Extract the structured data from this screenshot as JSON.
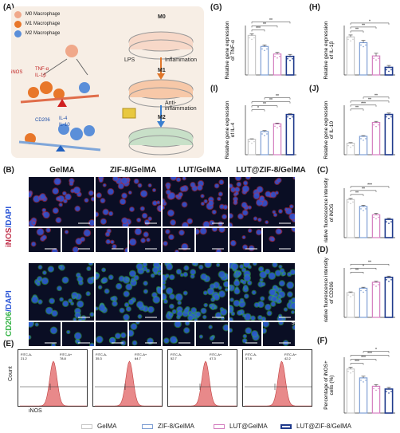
{
  "panels": {
    "A": "(A)",
    "B": "(B)",
    "C": "(C)",
    "D": "(D)",
    "E": "(E)",
    "F": "(F)",
    "G": "(G)",
    "H": "(H)",
    "I": "(I)",
    "J": "(J)"
  },
  "schematic": {
    "legend": [
      "M0 Macrophage",
      "M1 Macrophage",
      "M2 Macrophage"
    ],
    "m1_markers": {
      "inos": "iNOS",
      "tnf": "TNF-α",
      "il1b": "IL-1β"
    },
    "m2_markers": {
      "cd206": "CD206",
      "il4": "IL-4",
      "il10": "IL-10"
    },
    "states": {
      "m0": "M0",
      "m1": "M1",
      "m2": "M2"
    },
    "lps": "LPS",
    "inflammation": "Inflammation",
    "anti_inflammation": "Anti-\ninflammation"
  },
  "groups": [
    "GelMA",
    "ZIF-8/GelMA",
    "LUT/GelMA",
    "LUT@ZIF-8/GelMA"
  ],
  "stain_labels": {
    "inos": [
      "iNOS",
      "/DAPI"
    ],
    "cd206": [
      "CD206",
      "/DAPI"
    ]
  },
  "scale_bar": "50μm",
  "flow": {
    "ylabel": "Count",
    "xlabel": "iNOS",
    "left_gate": "FITC-A-",
    "right_gate": "FITC-A+",
    "left_values": [
      "21.2",
      "35.3",
      "52.7",
      "57.8"
    ],
    "right_values": [
      "78.8",
      "64.7",
      "47.3",
      "42.2"
    ]
  },
  "colors": {
    "gelma": "#c8c8c8",
    "zif8": "#7f9fd4",
    "lut": "#d47fc0",
    "lutzif": "#1f3a8c",
    "flow_fill": "#e8898a",
    "inos_stain": "#c0304a",
    "cd206_stain": "#39b54a",
    "dapi_stain": "#2a55d6"
  },
  "legend": [
    "GelMA",
    "ZIF-8/GelMA",
    "LUT@GelMA",
    "LUT@ZIF-8/GelMA"
  ],
  "chart_data": [
    {
      "panel": "G",
      "type": "bar",
      "categories": [
        "GelMA",
        "ZIF-8/GelMA",
        "LUT@GelMA",
        "LUT@ZIF-8/GelMA"
      ],
      "values": [
        1.0,
        0.72,
        0.53,
        0.47
      ],
      "errors": [
        0.04,
        0.04,
        0.04,
        0.05
      ],
      "ylabel": "Relative gene expression of TNF-α",
      "ylim": [
        0,
        1.25
      ],
      "sig": [
        "***",
        "**",
        "**"
      ]
    },
    {
      "panel": "H",
      "type": "bar",
      "categories": [
        "GelMA",
        "ZIF-8/GelMA",
        "LUT@GelMA",
        "LUT@ZIF-8/GelMA"
      ],
      "values": [
        1.0,
        0.85,
        0.5,
        0.2
      ],
      "errors": [
        0.05,
        0.06,
        0.07,
        0.05
      ],
      "ylabel": "Relative gene expression of IL-1β",
      "ylim": [
        0,
        1.3
      ],
      "sig": [
        "**",
        "**",
        "*"
      ]
    },
    {
      "panel": "I",
      "type": "bar",
      "categories": [
        "GelMA",
        "ZIF-8/GelMA",
        "LUT@GelMA",
        "LUT@ZIF-8/GelMA"
      ],
      "values": [
        1.0,
        1.5,
        2.0,
        2.6
      ],
      "errors": [
        0.03,
        0.06,
        0.05,
        0.05
      ],
      "ylabel": "Relative gene expression of IL-4",
      "ylim": [
        0,
        3.2
      ],
      "sig": [
        "*",
        "**",
        "**",
        "**"
      ]
    },
    {
      "panel": "J",
      "type": "bar",
      "categories": [
        "GelMA",
        "ZIF-8/GelMA",
        "LUT@GelMA",
        "LUT@ZIF-8/GelMA"
      ],
      "values": [
        1.0,
        1.6,
        2.8,
        3.5
      ],
      "errors": [
        0.05,
        0.06,
        0.1,
        0.12
      ],
      "ylabel": "Relative gene expression of IL-10",
      "ylim": [
        0,
        4.3
      ],
      "sig": [
        "**",
        "***",
        "**",
        "**"
      ]
    },
    {
      "panel": "C",
      "type": "bar",
      "categories": [
        "GelMA",
        "ZIF-8/GelMA",
        "LUT@GelMA",
        "LUT@ZIF-8/GelMA"
      ],
      "values": [
        1.0,
        0.82,
        0.6,
        0.48
      ],
      "errors": [
        0.03,
        0.03,
        0.04,
        0.03
      ],
      "ylabel": "Relative fluorescence intensity of iNOS",
      "ylim": [
        0,
        1.3
      ],
      "sig": [
        "**",
        "**",
        "***"
      ]
    },
    {
      "panel": "D",
      "type": "bar",
      "categories": [
        "GelMA",
        "ZIF-8/GelMA",
        "LUT@GelMA",
        "LUT@ZIF-8/GelMA"
      ],
      "values": [
        1.0,
        1.18,
        1.42,
        1.62
      ],
      "errors": [
        0.03,
        0.04,
        0.04,
        0.05
      ],
      "ylabel": "Relative fluorescence intensity of CD206",
      "ylim": [
        0,
        2.0
      ],
      "sig": [
        "**",
        "*",
        "**"
      ]
    },
    {
      "panel": "F",
      "type": "bar",
      "categories": [
        "GelMA",
        "ZIF-8/GelMA",
        "LUT@GelMA",
        "LUT@ZIF-8/GelMA"
      ],
      "values": [
        79,
        63,
        48,
        43
      ],
      "errors": [
        3,
        3,
        3,
        3
      ],
      "ylabel": "Percentage of iNOS+ cells (%)",
      "ylim": [
        0,
        100
      ],
      "sig": [
        "***",
        "***",
        "***",
        "*"
      ]
    }
  ]
}
